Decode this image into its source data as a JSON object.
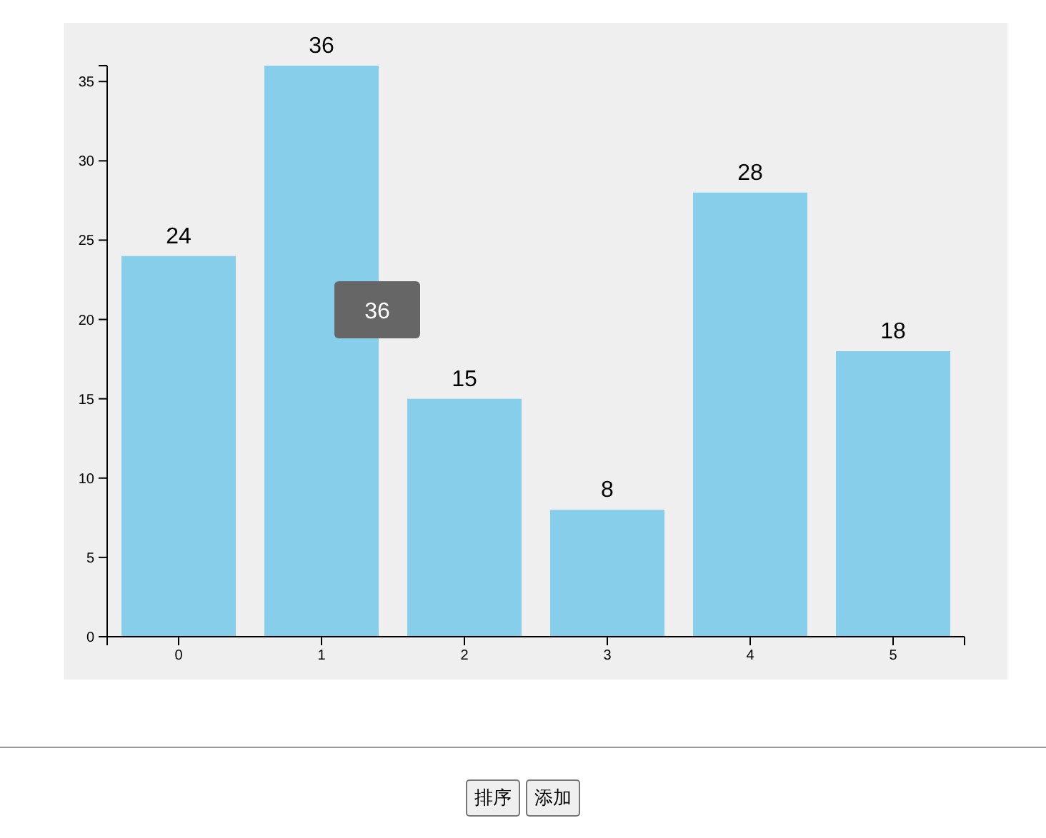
{
  "chart_data": {
    "type": "bar",
    "categories": [
      "0",
      "1",
      "2",
      "3",
      "4",
      "5"
    ],
    "values": [
      24,
      36,
      15,
      8,
      28,
      18
    ],
    "color": "#87ceeb",
    "ylim": [
      0,
      36
    ],
    "yticks": [
      0,
      5,
      10,
      15,
      20,
      25,
      30,
      35
    ],
    "data_labels": true,
    "annotations": [
      "36",
      "排序",
      "添加"
    ]
  }
}
